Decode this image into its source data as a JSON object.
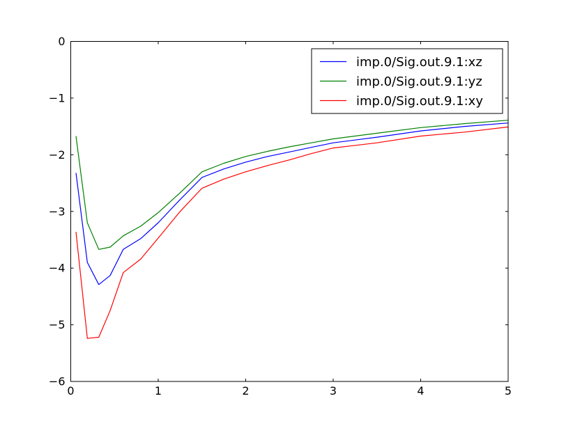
{
  "chart_data": {
    "type": "line",
    "title": "",
    "xlabel": "",
    "ylabel": "",
    "grid": false,
    "background": "#ffffff",
    "axis_color": "#000000",
    "xlim": [
      0,
      5
    ],
    "ylim": [
      -6,
      0
    ],
    "xticks": {
      "values": [
        0,
        1,
        2,
        3,
        4,
        5
      ],
      "labels": [
        "0",
        "1",
        "2",
        "3",
        "4",
        "5"
      ]
    },
    "yticks": {
      "values": [
        0,
        -1,
        -2,
        -3,
        -4,
        -5,
        -6
      ],
      "labels": [
        "0",
        "−1",
        "−2",
        "−3",
        "−4",
        "−5",
        "−6"
      ]
    },
    "tick_direction": "in",
    "ticks_all_sides": true,
    "x": [
      0.06,
      0.19,
      0.32,
      0.45,
      0.6,
      0.8,
      1.0,
      1.25,
      1.5,
      1.75,
      2.0,
      2.25,
      2.5,
      2.75,
      3.0,
      3.5,
      4.0,
      4.5,
      5.0
    ],
    "series": [
      {
        "name": "imp.0/Sig.out.9.1:xz",
        "short": "xz",
        "color": "#0000ff",
        "values": [
          -2.32,
          -3.9,
          -4.29,
          -4.13,
          -3.67,
          -3.48,
          -3.2,
          -2.79,
          -2.4,
          -2.25,
          -2.13,
          -2.03,
          -1.95,
          -1.87,
          -1.79,
          -1.69,
          -1.58,
          -1.5,
          -1.44
        ]
      },
      {
        "name": "imp.0/Sig.out.9.1:yz",
        "short": "yz",
        "color": "#008000",
        "values": [
          -1.67,
          -3.2,
          -3.67,
          -3.63,
          -3.43,
          -3.26,
          -3.02,
          -2.67,
          -2.3,
          -2.15,
          -2.03,
          -1.94,
          -1.86,
          -1.79,
          -1.72,
          -1.62,
          -1.52,
          -1.45,
          -1.39
        ]
      },
      {
        "name": "imp.0/Sig.out.9.1:xy",
        "short": "xy",
        "color": "#ff0000",
        "values": [
          -3.36,
          -5.24,
          -5.22,
          -4.75,
          -4.08,
          -3.84,
          -3.47,
          -3.0,
          -2.59,
          -2.43,
          -2.3,
          -2.19,
          -2.09,
          -1.98,
          -1.88,
          -1.79,
          -1.67,
          -1.6,
          -1.51
        ]
      }
    ],
    "legend": {
      "position": "upper right",
      "border_color": "#000000",
      "fill": "#ffffff"
    }
  }
}
